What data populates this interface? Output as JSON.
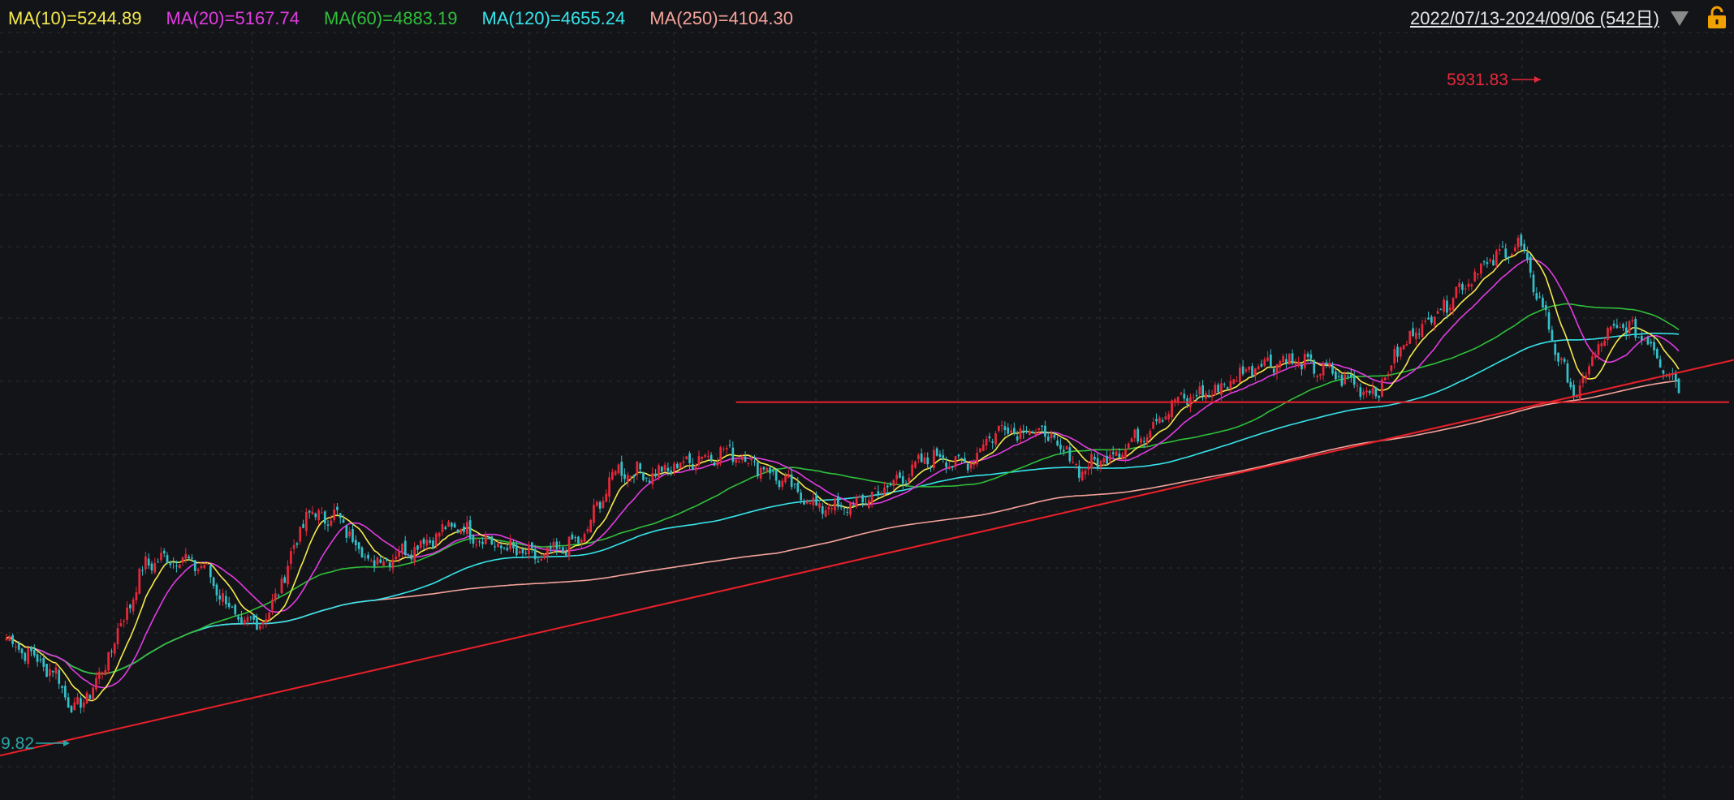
{
  "legend": {
    "ma10": {
      "text": "MA(10)=5244.89",
      "color": "#f5e94c"
    },
    "ma20": {
      "text": "MA(20)=5167.74",
      "color": "#e03ce0"
    },
    "ma60": {
      "text": "MA(60)=4883.19",
      "color": "#2fbf3a"
    },
    "ma120": {
      "text": "MA(120)=4655.24",
      "color": "#36e4ea"
    },
    "ma250": {
      "text": "MA(250)=4104.30",
      "color": "#f4a39a"
    }
  },
  "range": {
    "text": "2022/07/13-2024/09/06 (542日)"
  },
  "icons": {
    "dropdown": "triangle-down-icon",
    "lock": "lock-icon"
  },
  "colors": {
    "background": "#131418",
    "up": "#e8283a",
    "down": "#34c0c8",
    "trendline": "#e8202a",
    "grid": "#2c2e33"
  },
  "chart_data": {
    "type": "candlestick",
    "x_range": [
      "2022/07/13",
      "2024/09/06"
    ],
    "trading_days": 542,
    "y_range_est": [
      3540,
      6150
    ],
    "annotations": [
      {
        "text": "5931.83",
        "meaning": "period high",
        "color": "#e8283a"
      },
      {
        "text": "9.82",
        "meaning": "period low (label clipped at left edge)",
        "color": "#2aa6a6"
      }
    ],
    "series": [
      {
        "name": "MA(10)",
        "last": 5244.89,
        "color": "#f5e94c"
      },
      {
        "name": "MA(20)",
        "last": 5167.74,
        "color": "#e03ce0"
      },
      {
        "name": "MA(60)",
        "last": 4883.19,
        "color": "#2fbf3a"
      },
      {
        "name": "MA(120)",
        "last": 4655.24,
        "color": "#36e4ea"
      },
      {
        "name": "MA(250)",
        "last": 4104.3,
        "color": "#f4a39a"
      }
    ],
    "close_anchors": [
      [
        0,
        4050
      ],
      [
        16,
        3880
      ],
      [
        22,
        3700
      ],
      [
        30,
        3860
      ],
      [
        45,
        4400
      ],
      [
        55,
        4430
      ],
      [
        64,
        4380
      ],
      [
        76,
        4100
      ],
      [
        85,
        4160
      ],
      [
        97,
        4630
      ],
      [
        107,
        4620
      ],
      [
        118,
        4400
      ],
      [
        132,
        4480
      ],
      [
        145,
        4580
      ],
      [
        158,
        4490
      ],
      [
        172,
        4420
      ],
      [
        186,
        4510
      ],
      [
        197,
        4840
      ],
      [
        210,
        4820
      ],
      [
        222,
        4890
      ],
      [
        234,
        4930
      ],
      [
        246,
        4840
      ],
      [
        262,
        4670
      ],
      [
        272,
        4660
      ],
      [
        285,
        4760
      ],
      [
        300,
        4910
      ],
      [
        310,
        4860
      ],
      [
        321,
        5040
      ],
      [
        335,
        5020
      ],
      [
        348,
        4840
      ],
      [
        365,
        4980
      ],
      [
        378,
        5160
      ],
      [
        392,
        5220
      ],
      [
        404,
        5340
      ],
      [
        415,
        5360
      ],
      [
        428,
        5300
      ],
      [
        443,
        5200
      ],
      [
        452,
        5440
      ],
      [
        465,
        5620
      ],
      [
        475,
        5770
      ],
      [
        489,
        5910
      ],
      [
        497,
        5600
      ],
      [
        503,
        5330
      ],
      [
        508,
        5180
      ],
      [
        515,
        5430
      ],
      [
        522,
        5520
      ],
      [
        530,
        5470
      ],
      [
        541,
        5230
      ]
    ],
    "trendlines": [
      {
        "type": "rising support",
        "from": [
          0,
          3520
        ],
        "to": [
          541,
          5300
        ]
      },
      {
        "type": "horizontal",
        "level": 5160,
        "from_day": 236,
        "to_day": 541
      }
    ]
  }
}
